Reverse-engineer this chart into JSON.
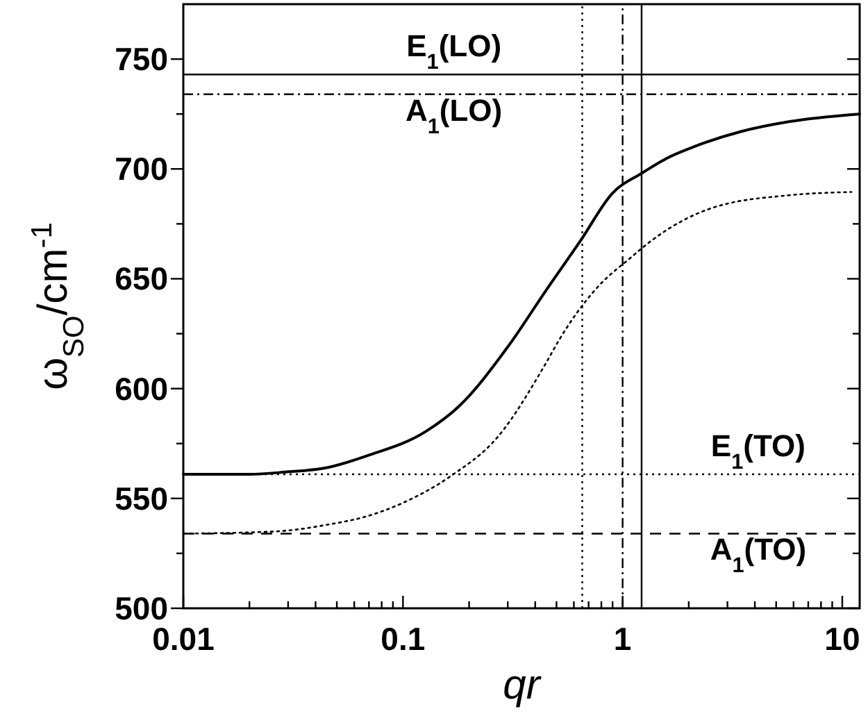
{
  "chart_data": {
    "type": "line",
    "xlabel": "qr",
    "ylabel": "ω$_{SO}$/cm$^{-1}$",
    "log": "x",
    "xlim": [
      0.01,
      12
    ],
    "ylim": [
      500,
      775
    ],
    "xticks": [
      0.01,
      {
        "value": 0.02,
        "label": null
      },
      {
        "value": 0.03,
        "label": null
      },
      {
        "value": 0.04,
        "label": null
      },
      {
        "value": 0.05,
        "label": null
      },
      {
        "value": 0.06,
        "label": null
      },
      {
        "value": 0.07,
        "label": null
      },
      {
        "value": 0.08,
        "label": null
      },
      {
        "value": 0.09,
        "label": null
      },
      0.1,
      {
        "value": 0.2,
        "label": null
      },
      {
        "value": 0.3,
        "label": null
      },
      {
        "value": 0.4,
        "label": null
      },
      {
        "value": 0.5,
        "label": null
      },
      {
        "value": 0.6,
        "label": null
      },
      {
        "value": 0.7,
        "label": null
      },
      {
        "value": 0.8,
        "label": null
      },
      {
        "value": 0.9,
        "label": null
      },
      1,
      {
        "value": 2,
        "label": null
      },
      {
        "value": 3,
        "label": null
      },
      {
        "value": 4,
        "label": null
      },
      {
        "value": 5,
        "label": null
      },
      {
        "value": 6,
        "label": null
      },
      {
        "value": 7,
        "label": null
      },
      {
        "value": 8,
        "label": null
      },
      {
        "value": 9,
        "label": null
      },
      10
    ],
    "yticks": [
      500,
      {
        "value": 525,
        "label": null
      },
      550,
      {
        "value": 575,
        "label": null
      },
      600,
      {
        "value": 625,
        "label": null
      },
      650,
      {
        "value": 675,
        "label": null
      },
      700,
      {
        "value": 725,
        "label": null
      },
      750
    ],
    "grid": false,
    "marker": "none",
    "series": [
      {
        "color": "#000000",
        "line_style": "solid",
        "x": [
          0.01,
          0.02,
          0.029,
          0.045,
          0.069,
          0.127,
          0.18,
          0.3,
          0.45,
          0.64,
          0.9,
          1.22,
          1.6,
          2.1,
          3.45,
          5.7,
          12
        ],
        "values": [
          561,
          561,
          562,
          564,
          569.5,
          580.5,
          592,
          619,
          645,
          667,
          689,
          698,
          705,
          710,
          717,
          721.5,
          725
        ]
      },
      {
        "color": "#000000",
        "line_style": "dotted",
        "x": [
          0.01,
          0.0264,
          0.045,
          0.069,
          0.1,
          0.164,
          0.27,
          0.45,
          0.52,
          0.75,
          1.1,
          1.38,
          2.6,
          5.7,
          11
        ],
        "values": [
          534,
          535,
          538,
          542,
          548,
          560,
          578,
          612,
          623,
          645,
          660,
          668,
          682.5,
          688,
          689.5
        ]
      }
    ],
    "ref_lines": [
      {
        "axis": "y",
        "value": 743,
        "line_style": "solid",
        "color": "#000000",
        "label": "E$_{1}$(LO)"
      },
      {
        "axis": "y",
        "value": 734,
        "line_style": "dashdot",
        "color": "#000000",
        "label": "A$_{1}$(LO)"
      },
      {
        "axis": "y",
        "value": 561,
        "line_style": "dotted",
        "color": "#000000",
        "label": "E$_{1}$(TO)"
      },
      {
        "axis": "y",
        "value": 534,
        "line_style": "dashed",
        "color": "#000000",
        "label": "A$_{1}$(TO)"
      },
      {
        "axis": "x",
        "value": 0.655,
        "line_style": "dotted",
        "color": "#000000"
      },
      {
        "axis": "x",
        "value": 1.0,
        "line_style": "dashdot",
        "color": "#000000"
      },
      {
        "axis": "x",
        "value": 1.22,
        "line_style": "solid",
        "color": "#000000"
      }
    ]
  }
}
